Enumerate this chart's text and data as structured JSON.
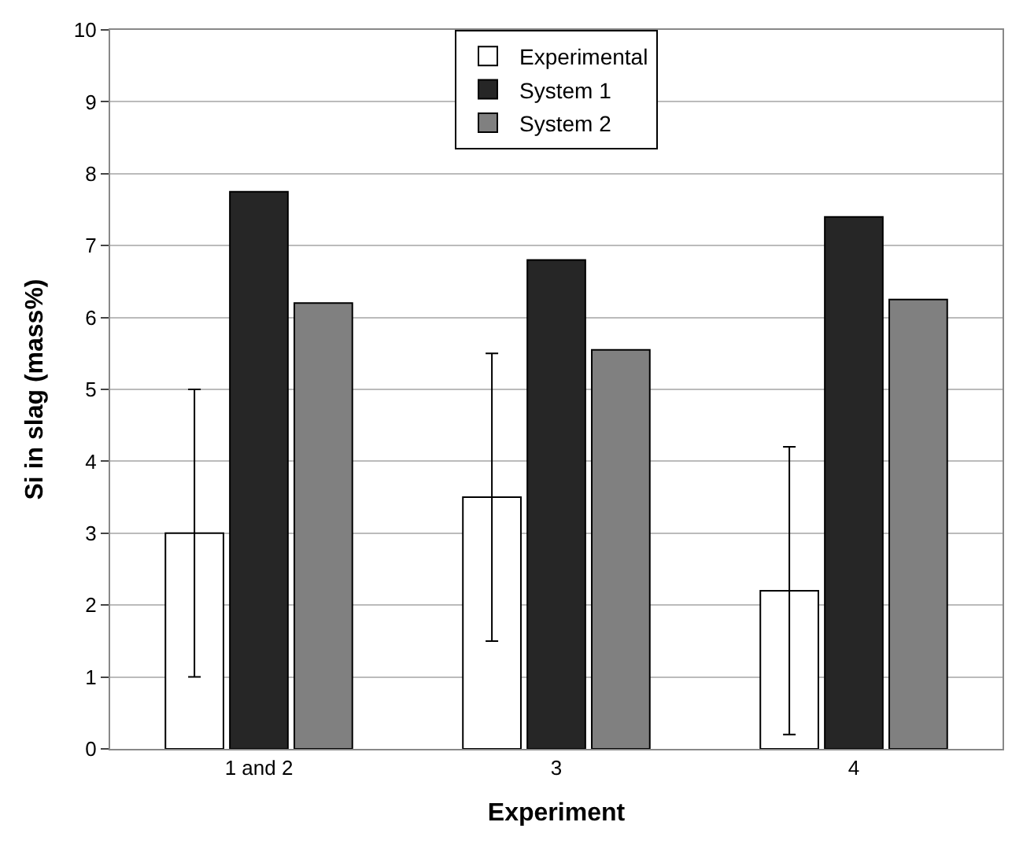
{
  "chart_data": {
    "type": "bar",
    "xlabel": "Experiment",
    "ylabel": "Si in slag (mass%)",
    "categories": [
      "1 and 2",
      "3",
      "4"
    ],
    "series": [
      {
        "name": "Experimental",
        "color": "#ffffff",
        "values": [
          3.0,
          3.5,
          2.2
        ],
        "errors": [
          2.0,
          2.0,
          2.0
        ]
      },
      {
        "name": "System 1",
        "color": "#262626",
        "values": [
          7.75,
          6.8,
          7.4
        ]
      },
      {
        "name": "System 2",
        "color": "#808080",
        "values": [
          6.2,
          5.55,
          6.25
        ]
      }
    ],
    "ylim": [
      0,
      10
    ],
    "yticks": [
      0,
      1,
      2,
      3,
      4,
      5,
      6,
      7,
      8,
      9,
      10
    ],
    "grid": "y",
    "legend": "top"
  }
}
